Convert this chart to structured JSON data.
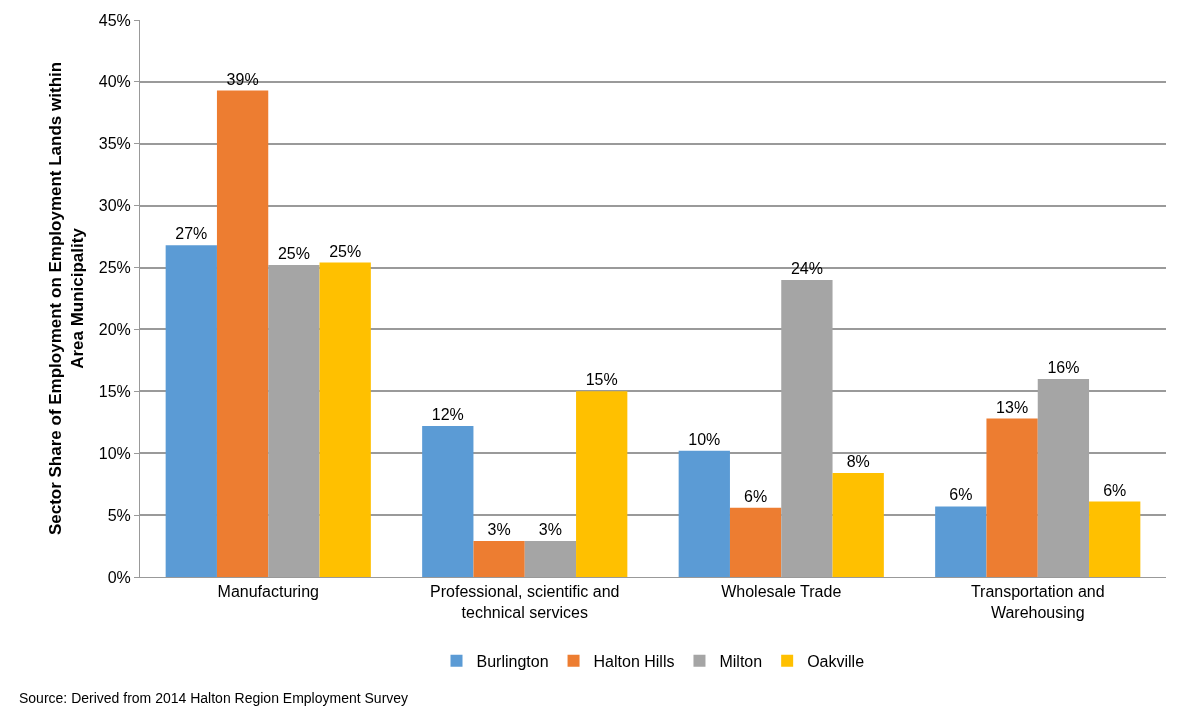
{
  "chart_data": {
    "type": "bar",
    "ylabel": "Sector Share of Employment on Employment Lands within Area Municipality",
    "categories": [
      "Manufacturing",
      "Professional, scientific and technical services",
      "Wholesale Trade",
      "Transportation and Warehousing"
    ],
    "series": [
      {
        "name": "Burlington",
        "color": "#5b9bd5",
        "values": [
          26.8,
          12.2,
          10.2,
          5.7
        ],
        "value_labels": [
          "27%",
          "12%",
          "10%",
          "6%"
        ]
      },
      {
        "name": "Halton Hills",
        "color": "#ed7d31",
        "values": [
          39.3,
          2.9,
          5.6,
          12.8
        ],
        "value_labels": [
          "39%",
          "3%",
          "6%",
          "13%"
        ]
      },
      {
        "name": "Milton",
        "color": "#a5a5a5",
        "values": [
          25.2,
          2.9,
          24.0,
          16.0
        ],
        "value_labels": [
          "25%",
          "3%",
          "24%",
          "16%"
        ]
      },
      {
        "name": "Oakville",
        "color": "#ffc000",
        "values": [
          25.4,
          15.0,
          8.4,
          6.1
        ],
        "value_labels": [
          "25%",
          "15%",
          "8%",
          "6%"
        ]
      }
    ],
    "ylim": [
      0,
      45
    ],
    "yticks": [
      {
        "value": 0,
        "label": "0%"
      },
      {
        "value": 5,
        "label": "5%"
      },
      {
        "value": 10,
        "label": "10%"
      },
      {
        "value": 15,
        "label": "15%"
      },
      {
        "value": 20,
        "label": "20%"
      },
      {
        "value": 25,
        "label": "25%"
      },
      {
        "value": 30,
        "label": "30%"
      },
      {
        "value": 35,
        "label": "35%"
      },
      {
        "value": 40,
        "label": "40%"
      },
      {
        "value": 45,
        "label": "45%"
      }
    ],
    "grid": "y",
    "legend": "bottom",
    "annotations": [
      "Source: Derived from 2014 Halton Region Employment Survey"
    ]
  }
}
